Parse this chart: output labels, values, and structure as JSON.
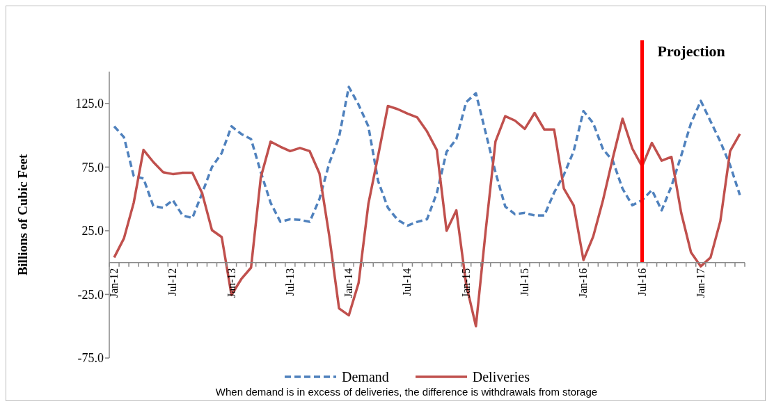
{
  "chart_data": {
    "type": "line",
    "ylabel": "Billions of Cubic Feet",
    "categories": [
      "Jan-12",
      null,
      null,
      null,
      null,
      null,
      "Jul-12",
      null,
      null,
      null,
      null,
      null,
      "Jan-13",
      null,
      null,
      null,
      null,
      null,
      "Jul-13",
      null,
      null,
      null,
      null,
      null,
      "Jan-14",
      null,
      null,
      null,
      null,
      null,
      "Jul-14",
      null,
      null,
      null,
      null,
      null,
      "Jan-15",
      null,
      null,
      null,
      null,
      null,
      "Jul-15",
      null,
      null,
      null,
      null,
      null,
      "Jan-16",
      null,
      null,
      null,
      null,
      null,
      "Jul-16",
      null,
      null,
      null,
      null,
      null,
      "Jan-17",
      null,
      null,
      null,
      null
    ],
    "series": [
      {
        "name": "Demand",
        "color": "#4f81bd",
        "line_style": "dashed",
        "values": [
          107,
          98.5,
          68,
          66,
          44.5,
          43,
          49,
          37,
          35,
          54.5,
          75,
          86,
          107,
          101,
          97,
          71,
          47,
          32,
          34,
          33.5,
          32,
          50,
          78,
          98.5,
          138,
          124,
          107,
          64,
          43,
          33.5,
          29,
          32,
          34,
          54.5,
          87,
          97,
          126,
          133,
          102,
          71,
          44,
          38,
          39,
          37,
          37,
          55,
          69,
          87.5,
          119,
          109.5,
          89,
          80,
          58,
          45,
          49,
          57,
          41,
          60,
          84,
          109.5,
          127,
          111,
          95,
          76.5,
          53
        ]
      },
      {
        "name": "Deliveries",
        "color": "#c0504d",
        "line_style": "solid",
        "values": [
          4,
          19,
          47,
          88.5,
          79,
          71,
          69.5,
          70.5,
          70.5,
          54.5,
          25.5,
          20,
          -25.5,
          -13,
          -4,
          67,
          95,
          91,
          87.5,
          90,
          87.5,
          70,
          21,
          -36,
          -41.5,
          -16,
          46,
          84,
          123,
          120.5,
          117,
          114,
          103,
          88.5,
          25,
          41,
          -17,
          -50,
          25,
          95,
          115,
          111.5,
          105,
          117.5,
          104.5,
          104.5,
          58,
          45,
          2,
          20.5,
          49,
          82,
          113,
          89.5,
          75.5,
          94,
          80,
          83,
          39,
          8,
          -3,
          4,
          32.5,
          87.5,
          101
        ]
      }
    ],
    "ylim": [
      -75,
      150
    ],
    "yticks": [
      {
        "value": -75,
        "label": "-75.0"
      },
      {
        "value": -25,
        "label": "-25.0"
      },
      {
        "value": 25,
        "label": "25.0"
      },
      {
        "value": 75,
        "label": "75.0"
      },
      {
        "value": 125,
        "label": "125.0"
      }
    ],
    "ref_lines": [
      {
        "axis": "x",
        "value": "Jul-16",
        "label": "Projection",
        "color": "#ff0000"
      }
    ],
    "legend": "bottom",
    "grid": false,
    "annotations": [
      "When demand is in excess of deliveries, the difference is withdrawals from storage"
    ]
  }
}
